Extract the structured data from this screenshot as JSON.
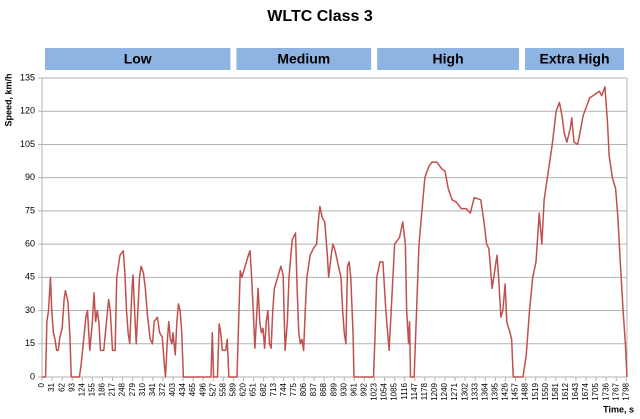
{
  "chart_data": {
    "type": "line",
    "title": "WLTC Class 3",
    "y_label": "Speed, km/h",
    "x_label": "Time, s",
    "color": "#c0504d",
    "band_color": "#8db4e2",
    "grid": true,
    "phases": [
      {
        "label": "Low",
        "start": 0,
        "end": 589
      },
      {
        "label": "Medium",
        "start": 589,
        "end": 1022
      },
      {
        "label": "High",
        "start": 1022,
        "end": 1477
      },
      {
        "label": "Extra High",
        "start": 1477,
        "end": 1800
      }
    ],
    "xlim": [
      0,
      1800
    ],
    "ylim": [
      0,
      135
    ],
    "yticks": [
      0,
      15,
      30,
      45,
      60,
      75,
      90,
      105,
      120,
      135
    ],
    "xticks": [
      0,
      31,
      62,
      93,
      124,
      155,
      186,
      217,
      248,
      279,
      310,
      341,
      372,
      403,
      434,
      465,
      496,
      527,
      558,
      589,
      620,
      651,
      682,
      713,
      744,
      775,
      806,
      837,
      868,
      899,
      930,
      961,
      992,
      1023,
      1054,
      1085,
      1116,
      1147,
      1178,
      1209,
      1240,
      1271,
      1302,
      1333,
      1364,
      1395,
      1426,
      1457,
      1488,
      1519,
      1550,
      1581,
      1612,
      1643,
      1674,
      1705,
      1736,
      1767,
      1798
    ],
    "x": [
      0,
      11,
      15,
      20,
      26,
      30,
      35,
      40,
      45,
      50,
      55,
      62,
      68,
      72,
      80,
      86,
      90,
      115,
      120,
      135,
      140,
      147,
      155,
      160,
      165,
      170,
      175,
      180,
      190,
      205,
      210,
      217,
      225,
      230,
      240,
      250,
      255,
      260,
      265,
      270,
      277,
      280,
      285,
      290,
      295,
      300,
      305,
      312,
      318,
      325,
      333,
      340,
      345,
      355,
      362,
      370,
      375,
      380,
      385,
      390,
      395,
      400,
      403,
      410,
      415,
      420,
      425,
      430,
      435,
      520,
      524,
      528,
      540,
      545,
      550,
      555,
      565,
      570,
      575,
      600,
      605,
      610,
      615,
      625,
      635,
      640,
      645,
      650,
      655,
      665,
      670,
      675,
      680,
      685,
      690,
      695,
      700,
      705,
      710,
      715,
      725,
      735,
      742,
      748,
      755,
      760,
      770,
      780,
      785,
      790,
      795,
      800,
      805,
      810,
      815,
      825,
      835,
      845,
      850,
      855,
      862,
      870,
      878,
      882,
      890,
      895,
      900,
      905,
      912,
      920,
      925,
      930,
      935,
      940,
      945,
      950,
      957,
      960,
      1020,
      1025,
      1030,
      1040,
      1049,
      1058,
      1068,
      1078,
      1085,
      1100,
      1110,
      1118,
      1122,
      1128,
      1131,
      1134,
      1145,
      1160,
      1178,
      1190,
      1200,
      1215,
      1230,
      1240,
      1250,
      1262,
      1275,
      1290,
      1305,
      1318,
      1330,
      1350,
      1360,
      1368,
      1375,
      1385,
      1395,
      1400,
      1405,
      1412,
      1418,
      1425,
      1430,
      1440,
      1445,
      1450,
      1480,
      1490,
      1500,
      1510,
      1520,
      1530,
      1538,
      1545,
      1555,
      1570,
      1582,
      1592,
      1600,
      1607,
      1615,
      1625,
      1630,
      1637,
      1648,
      1655,
      1665,
      1675,
      1685,
      1695,
      1705,
      1715,
      1722,
      1732,
      1740,
      1745,
      1755,
      1765,
      1772,
      1780,
      1788,
      1795,
      1800
    ],
    "values": [
      0,
      0,
      25,
      30,
      45,
      30,
      20,
      17,
      12,
      12,
      18,
      22,
      35,
      39,
      34,
      18,
      0,
      0,
      5,
      27,
      30,
      12,
      25,
      38,
      25,
      30,
      25,
      12,
      12,
      35,
      30,
      12,
      12,
      45,
      55,
      57,
      47,
      30,
      20,
      15,
      40,
      46,
      30,
      15,
      30,
      45,
      50,
      47,
      40,
      27,
      17,
      15,
      25,
      27,
      20,
      18,
      8,
      0,
      15,
      25,
      17,
      15,
      20,
      10,
      25,
      33,
      30,
      20,
      0,
      0,
      20,
      0,
      0,
      24,
      20,
      12,
      12,
      17,
      0,
      0,
      25,
      48,
      45,
      50,
      55,
      57,
      45,
      30,
      13,
      40,
      25,
      20,
      22,
      13,
      25,
      30,
      15,
      13,
      30,
      40,
      45,
      50,
      46,
      12,
      25,
      45,
      62,
      65,
      40,
      20,
      15,
      17,
      12,
      30,
      45,
      55,
      58,
      60,
      70,
      77,
      72,
      70,
      55,
      45,
      55,
      60,
      58,
      55,
      50,
      45,
      30,
      20,
      15,
      50,
      52,
      45,
      20,
      0,
      0,
      20,
      45,
      52,
      52,
      30,
      12,
      40,
      60,
      63,
      70,
      60,
      30,
      15,
      25,
      0,
      0,
      60,
      90,
      95,
      97,
      97,
      94,
      93,
      85,
      80,
      79,
      76,
      76,
      74,
      81,
      80,
      70,
      60,
      58,
      40,
      50,
      55,
      45,
      27,
      30,
      42,
      25,
      20,
      17,
      0,
      0,
      10,
      30,
      45,
      52,
      74,
      60,
      80,
      90,
      105,
      120,
      124,
      118,
      110,
      106,
      112,
      117,
      106,
      105,
      110,
      118,
      122,
      126,
      127,
      128,
      129,
      127,
      131,
      115,
      100,
      90,
      85,
      72,
      50,
      30,
      15,
      0
    ]
  }
}
